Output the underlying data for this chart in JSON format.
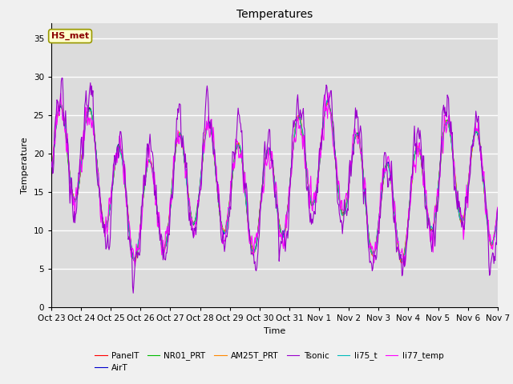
{
  "title": "Temperatures",
  "xlabel": "Time",
  "ylabel": "Temperature",
  "ylim": [
    0,
    37
  ],
  "yticks": [
    0,
    5,
    10,
    15,
    20,
    25,
    30,
    35
  ],
  "xtick_labels": [
    "Oct 23",
    "Oct 24",
    "Oct 25",
    "Oct 26",
    "Oct 27",
    "Oct 28",
    "Oct 29",
    "Oct 30",
    "Oct 31",
    "Nov 1",
    "Nov 2",
    "Nov 3",
    "Nov 4",
    "Nov 5",
    "Nov 6",
    "Nov 7"
  ],
  "annotation_text": "HS_met",
  "annotation_text_color": "#8B0000",
  "annotation_box_facecolor": "#FFFFCC",
  "annotation_box_edgecolor": "#999900",
  "series_colors": {
    "PanelT": "#FF0000",
    "AirT": "#0000CC",
    "NR01_PRT": "#00BB00",
    "AM25T_PRT": "#FF8800",
    "Tsonic": "#9900CC",
    "li75_t": "#00BBBB",
    "li77_temp": "#FF00FF"
  },
  "legend_order": [
    "PanelT",
    "AirT",
    "NR01_PRT",
    "AM25T_PRT",
    "Tsonic",
    "li75_t",
    "li77_temp"
  ],
  "fig_facecolor": "#F0F0F0",
  "plot_bg_color": "#DCDCDC",
  "grid_color": "#FFFFFF",
  "title_fontsize": 10,
  "axis_label_fontsize": 8,
  "tick_fontsize": 7.5
}
